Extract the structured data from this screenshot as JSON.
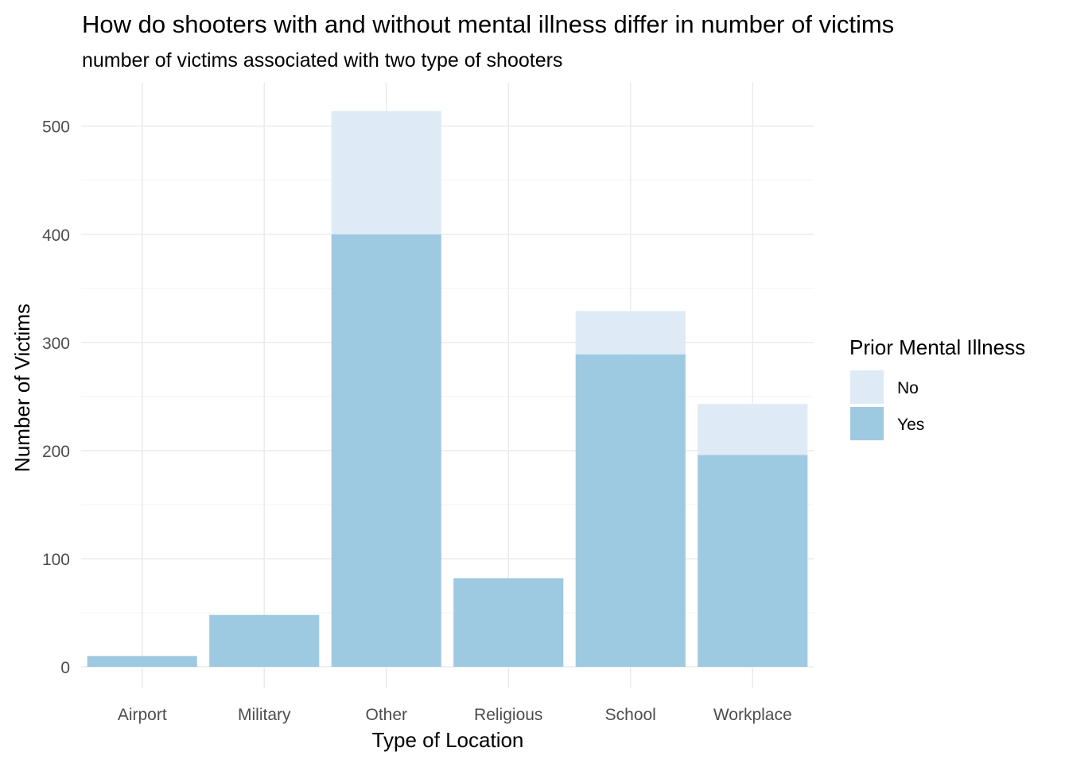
{
  "chart_data": {
    "type": "bar",
    "stacked": true,
    "title": "How do shooters with and without mental illness differ in number of victims",
    "subtitle": "number of victims associated with two type of shooters",
    "xlabel": "Type of Location",
    "ylabel": "Number of Victims",
    "categories": [
      "Airport",
      "Military",
      "Other",
      "Religious",
      "School",
      "Workplace"
    ],
    "series": [
      {
        "name": "Yes",
        "color": "#9ECAE1",
        "values": [
          10,
          48,
          400,
          82,
          289,
          196
        ]
      },
      {
        "name": "No",
        "color": "#DEEBF7",
        "values": [
          0,
          0,
          114,
          0,
          40,
          47
        ]
      }
    ],
    "ylim": [
      0,
      540
    ],
    "yticks": [
      0,
      100,
      200,
      300,
      400,
      500
    ],
    "grid": true,
    "legend": {
      "title": "Prior Mental Illness",
      "placement": "right",
      "entries": [
        {
          "label": "No",
          "color": "#DEEBF7"
        },
        {
          "label": "Yes",
          "color": "#9ECAE1"
        }
      ]
    }
  }
}
